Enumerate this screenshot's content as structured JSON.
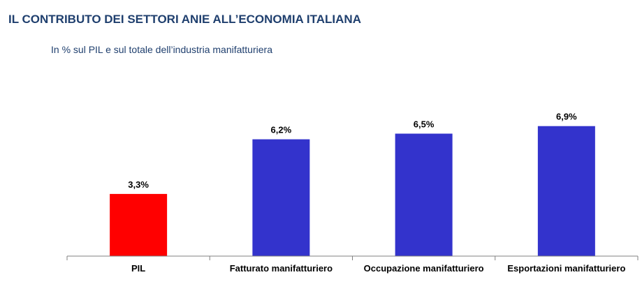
{
  "header": {
    "title": "IL CONTRIBUTO DEI SETTORI ANIE ALL’ECONOMIA ITALIANA",
    "subtitle": "In % sul PIL e sul totale dell’industria manifatturiera"
  },
  "chart_data": {
    "type": "bar",
    "categories": [
      "PIL",
      "Fatturato manifatturiero",
      "Occupazione manifatturiero",
      "Esportazioni manifatturiero"
    ],
    "values": [
      3.3,
      6.2,
      6.5,
      6.9
    ],
    "value_labels": [
      "3,3%",
      "6,2%",
      "6,5%",
      "6,9%"
    ],
    "colors": [
      "#FF0000",
      "#3333CC",
      "#3333CC",
      "#3333CC"
    ],
    "ylim": [
      0,
      8.1
    ],
    "grid": false,
    "legend": "none"
  }
}
